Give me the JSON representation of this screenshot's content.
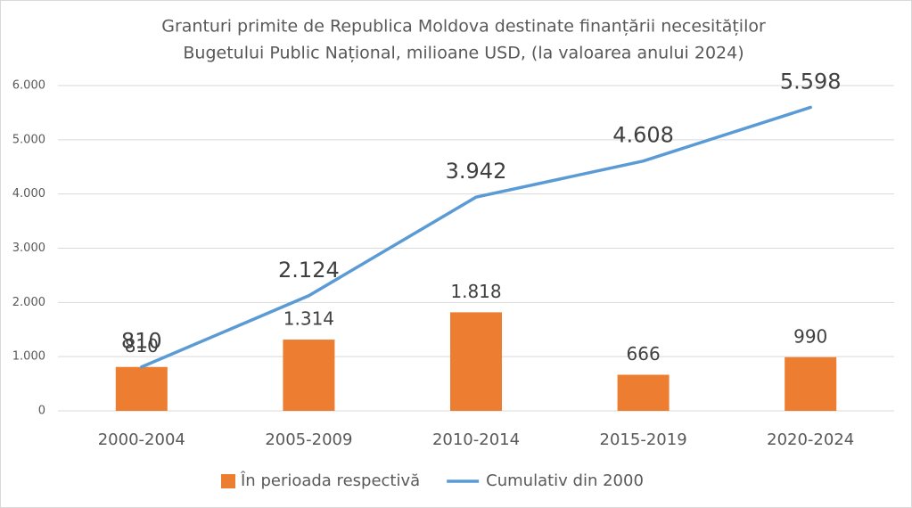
{
  "chart_data": {
    "type": "bar",
    "title": [
      "Granturi primite de Republica Moldova destinate finanțării necesităților",
      "Bugetului Public Național, milioane USD,  (la valoarea anului 2024)"
    ],
    "categories": [
      "2000-2004",
      "2005-2009",
      "2010-2014",
      "2015-2019",
      "2020-2024"
    ],
    "series": [
      {
        "name": "În perioada respectivă",
        "type": "bar",
        "color": "#ed7d31",
        "values": [
          810,
          1314,
          1818,
          666,
          990
        ],
        "value_labels": [
          "810",
          "1.314",
          "1.818",
          "666",
          "990"
        ]
      },
      {
        "name": "Cumulativ din 2000",
        "type": "line",
        "color": "#5b9bd5",
        "values": [
          810,
          2124,
          3942,
          4608,
          5598
        ],
        "value_labels": [
          "810",
          "2.124",
          "3.942",
          "4.608",
          "5.598"
        ]
      }
    ],
    "ylim": [
      0,
      6000
    ],
    "yticks": [
      0,
      {
        "value": 1000,
        "label": "1.000"
      },
      {
        "value": 2000,
        "label": "2.000"
      },
      {
        "value": 3000,
        "label": "3.000"
      },
      {
        "value": 4000,
        "label": "4.000"
      },
      {
        "value": 5000,
        "label": "5.000"
      },
      {
        "value": 6000,
        "label": "6.000"
      }
    ],
    "grid": true,
    "legend": "bottom"
  }
}
